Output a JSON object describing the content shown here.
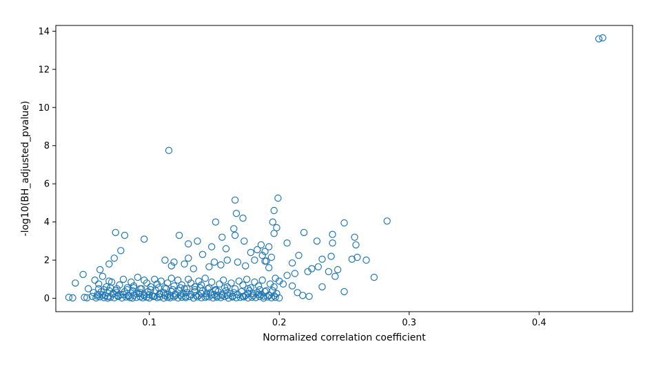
{
  "chart_data": {
    "type": "scatter",
    "title": "",
    "xlabel": "Normalized correlation coefficient",
    "ylabel": "-log10(BH_adjusted_pvalue)",
    "xlim": [
      0.028,
      0.472
    ],
    "ylim": [
      -0.7,
      14.3
    ],
    "xticks": [
      0.1,
      0.2,
      0.3,
      0.4
    ],
    "xtick_labels": [
      "0.1",
      "0.2",
      "0.3",
      "0.4"
    ],
    "yticks": [
      0,
      2,
      4,
      6,
      8,
      10,
      12,
      14
    ],
    "ytick_labels": [
      "0",
      "2",
      "4",
      "6",
      "8",
      "10",
      "12",
      "14"
    ],
    "grid": false,
    "marker": "hollow-circle",
    "marker_color": "#1f77b4",
    "x": [
      0.446,
      0.449,
      0.115,
      0.166,
      0.199,
      0.196,
      0.167,
      0.172,
      0.151,
      0.165,
      0.195,
      0.198,
      0.283,
      0.25,
      0.196,
      0.219,
      0.241,
      0.258,
      0.229,
      0.241,
      0.259,
      0.206,
      0.192,
      0.186,
      0.074,
      0.081,
      0.096,
      0.123,
      0.13,
      0.137,
      0.148,
      0.156,
      0.159,
      0.166,
      0.173,
      0.178,
      0.183,
      0.189,
      0.194,
      0.078,
      0.069,
      0.073,
      0.062,
      0.112,
      0.117,
      0.119,
      0.127,
      0.13,
      0.134,
      0.141,
      0.146,
      0.15,
      0.155,
      0.16,
      0.168,
      0.174,
      0.181,
      0.187,
      0.19,
      0.21,
      0.215,
      0.233,
      0.24,
      0.256,
      0.26,
      0.267,
      0.23,
      0.225,
      0.245,
      0.238,
      0.243,
      0.273,
      0.222,
      0.212,
      0.189,
      0.192,
      0.197,
      0.2,
      0.203,
      0.25,
      0.233,
      0.21,
      0.206,
      0.214,
      0.218,
      0.223,
      0.043,
      0.049,
      0.053,
      0.058,
      0.061,
      0.064,
      0.067,
      0.069,
      0.071,
      0.074,
      0.077,
      0.08,
      0.083,
      0.086,
      0.088,
      0.091,
      0.093,
      0.096,
      0.098,
      0.101,
      0.104,
      0.106,
      0.109,
      0.112,
      0.114,
      0.117,
      0.119,
      0.122,
      0.125,
      0.127,
      0.13,
      0.132,
      0.135,
      0.138,
      0.14,
      0.143,
      0.146,
      0.148,
      0.151,
      0.154,
      0.157,
      0.16,
      0.163,
      0.166,
      0.169,
      0.172,
      0.175,
      0.178,
      0.181,
      0.184,
      0.187,
      0.19,
      0.193,
      0.196,
      0.038,
      0.041,
      0.05,
      0.052,
      0.056,
      0.059,
      0.062,
      0.065,
      0.068,
      0.07,
      0.073,
      0.076,
      0.079,
      0.082,
      0.085,
      0.087,
      0.09,
      0.093,
      0.095,
      0.098,
      0.1,
      0.103,
      0.106,
      0.108,
      0.111,
      0.114,
      0.116,
      0.119,
      0.122,
      0.125,
      0.128,
      0.131,
      0.134,
      0.137,
      0.14,
      0.143,
      0.146,
      0.149,
      0.152,
      0.155,
      0.158,
      0.161,
      0.164,
      0.167,
      0.17,
      0.173,
      0.176,
      0.179,
      0.182,
      0.185,
      0.188,
      0.191,
      0.194,
      0.197,
      0.2,
      0.057,
      0.06,
      0.063,
      0.066,
      0.069,
      0.072,
      0.075,
      0.078,
      0.081,
      0.084,
      0.087,
      0.09,
      0.093,
      0.096,
      0.099,
      0.102,
      0.105,
      0.108,
      0.111,
      0.114,
      0.117,
      0.12,
      0.123,
      0.126,
      0.129,
      0.132,
      0.135,
      0.138,
      0.141,
      0.144,
      0.147,
      0.15,
      0.153,
      0.156,
      0.159,
      0.162,
      0.165,
      0.168,
      0.171,
      0.174,
      0.177,
      0.18,
      0.183,
      0.186,
      0.189,
      0.192,
      0.195,
      0.198,
      0.06,
      0.064,
      0.068,
      0.072,
      0.076,
      0.08,
      0.084,
      0.088,
      0.092,
      0.096,
      0.1,
      0.104,
      0.108,
      0.112,
      0.116,
      0.12,
      0.124,
      0.128,
      0.132,
      0.136,
      0.14,
      0.144,
      0.148,
      0.152,
      0.156,
      0.16,
      0.164,
      0.168,
      0.172,
      0.176,
      0.18,
      0.184,
      0.188,
      0.192,
      0.196,
      0.061,
      0.065,
      0.07,
      0.075,
      0.083,
      0.088,
      0.094,
      0.101,
      0.107,
      0.113,
      0.118,
      0.124,
      0.129,
      0.135,
      0.139,
      0.145,
      0.151,
      0.158,
      0.176,
      0.185
    ],
    "y": [
      13.6,
      13.65,
      7.75,
      5.15,
      5.25,
      4.6,
      4.45,
      4.2,
      4.0,
      3.65,
      4.0,
      3.7,
      4.05,
      3.95,
      3.4,
      3.45,
      3.35,
      3.2,
      3.0,
      2.9,
      2.8,
      2.9,
      2.7,
      2.8,
      3.45,
      3.3,
      3.1,
      3.3,
      2.85,
      3.0,
      2.7,
      3.2,
      2.6,
      3.3,
      3.0,
      2.4,
      2.55,
      2.45,
      2.15,
      2.5,
      1.8,
      2.1,
      1.5,
      2.0,
      1.7,
      1.9,
      1.8,
      2.1,
      1.55,
      2.3,
      1.65,
      1.9,
      1.75,
      2.0,
      1.9,
      1.7,
      2.0,
      2.25,
      1.95,
      1.85,
      2.25,
      2.05,
      2.2,
      2.05,
      2.15,
      2.0,
      1.65,
      1.55,
      1.5,
      1.4,
      1.15,
      1.1,
      1.4,
      1.3,
      1.95,
      1.6,
      1.05,
      0.9,
      0.75,
      0.35,
      0.6,
      0.65,
      1.2,
      0.3,
      0.15,
      0.1,
      0.8,
      1.25,
      0.5,
      0.95,
      0.75,
      1.15,
      0.6,
      0.9,
      0.85,
      0.4,
      0.7,
      1.0,
      0.55,
      0.85,
      0.65,
      1.1,
      0.5,
      0.95,
      0.8,
      0.6,
      1.0,
      0.75,
      0.9,
      0.55,
      0.8,
      1.05,
      0.65,
      0.95,
      0.7,
      0.5,
      1.0,
      0.8,
      0.6,
      0.9,
      0.7,
      1.05,
      0.55,
      0.85,
      0.4,
      0.75,
      0.95,
      0.6,
      0.8,
      0.5,
      0.9,
      0.7,
      1.0,
      0.55,
      0.85,
      0.65,
      0.95,
      0.4,
      0.75,
      0.6,
      0.05,
      0.02,
      0.05,
      0.03,
      0.1,
      0.02,
      0.08,
      0.04,
      0.01,
      0.06,
      0.03,
      0.09,
      0.02,
      0.07,
      0.04,
      0.01,
      0.05,
      0.08,
      0.03,
      0.06,
      0.02,
      0.09,
      0.04,
      0.07,
      0.01,
      0.05,
      0.03,
      0.08,
      0.02,
      0.06,
      0.04,
      0.09,
      0.01,
      0.07,
      0.03,
      0.05,
      0.08,
      0.02,
      0.06,
      0.04,
      0.09,
      0.01,
      0.07,
      0.03,
      0.05,
      0.08,
      0.02,
      0.06,
      0.04,
      0.09,
      0.01,
      0.07,
      0.03,
      0.05,
      0.02,
      0.3,
      0.2,
      0.35,
      0.15,
      0.4,
      0.25,
      0.3,
      0.2,
      0.35,
      0.15,
      0.4,
      0.25,
      0.3,
      0.2,
      0.35,
      0.15,
      0.4,
      0.25,
      0.3,
      0.2,
      0.35,
      0.15,
      0.4,
      0.25,
      0.3,
      0.2,
      0.35,
      0.15,
      0.4,
      0.25,
      0.3,
      0.2,
      0.35,
      0.15,
      0.4,
      0.25,
      0.3,
      0.2,
      0.35,
      0.15,
      0.4,
      0.25,
      0.3,
      0.2,
      0.35,
      0.15,
      0.4,
      0.25,
      0.12,
      0.18,
      0.1,
      0.22,
      0.14,
      0.2,
      0.11,
      0.16,
      0.24,
      0.13,
      0.19,
      0.1,
      0.21,
      0.15,
      0.12,
      0.23,
      0.17,
      0.1,
      0.2,
      0.14,
      0.25,
      0.11,
      0.18,
      0.13,
      0.22,
      0.16,
      0.12,
      0.19,
      0.1,
      0.24,
      0.15,
      0.21,
      0.11,
      0.17,
      0.13,
      0.5,
      0.45,
      0.55,
      0.5,
      0.45,
      0.55,
      0.5,
      0.45,
      0.55,
      0.5,
      0.45,
      0.55,
      0.5,
      0.45,
      0.55,
      0.5,
      0.45,
      0.55,
      0.5,
      0.45
    ]
  }
}
